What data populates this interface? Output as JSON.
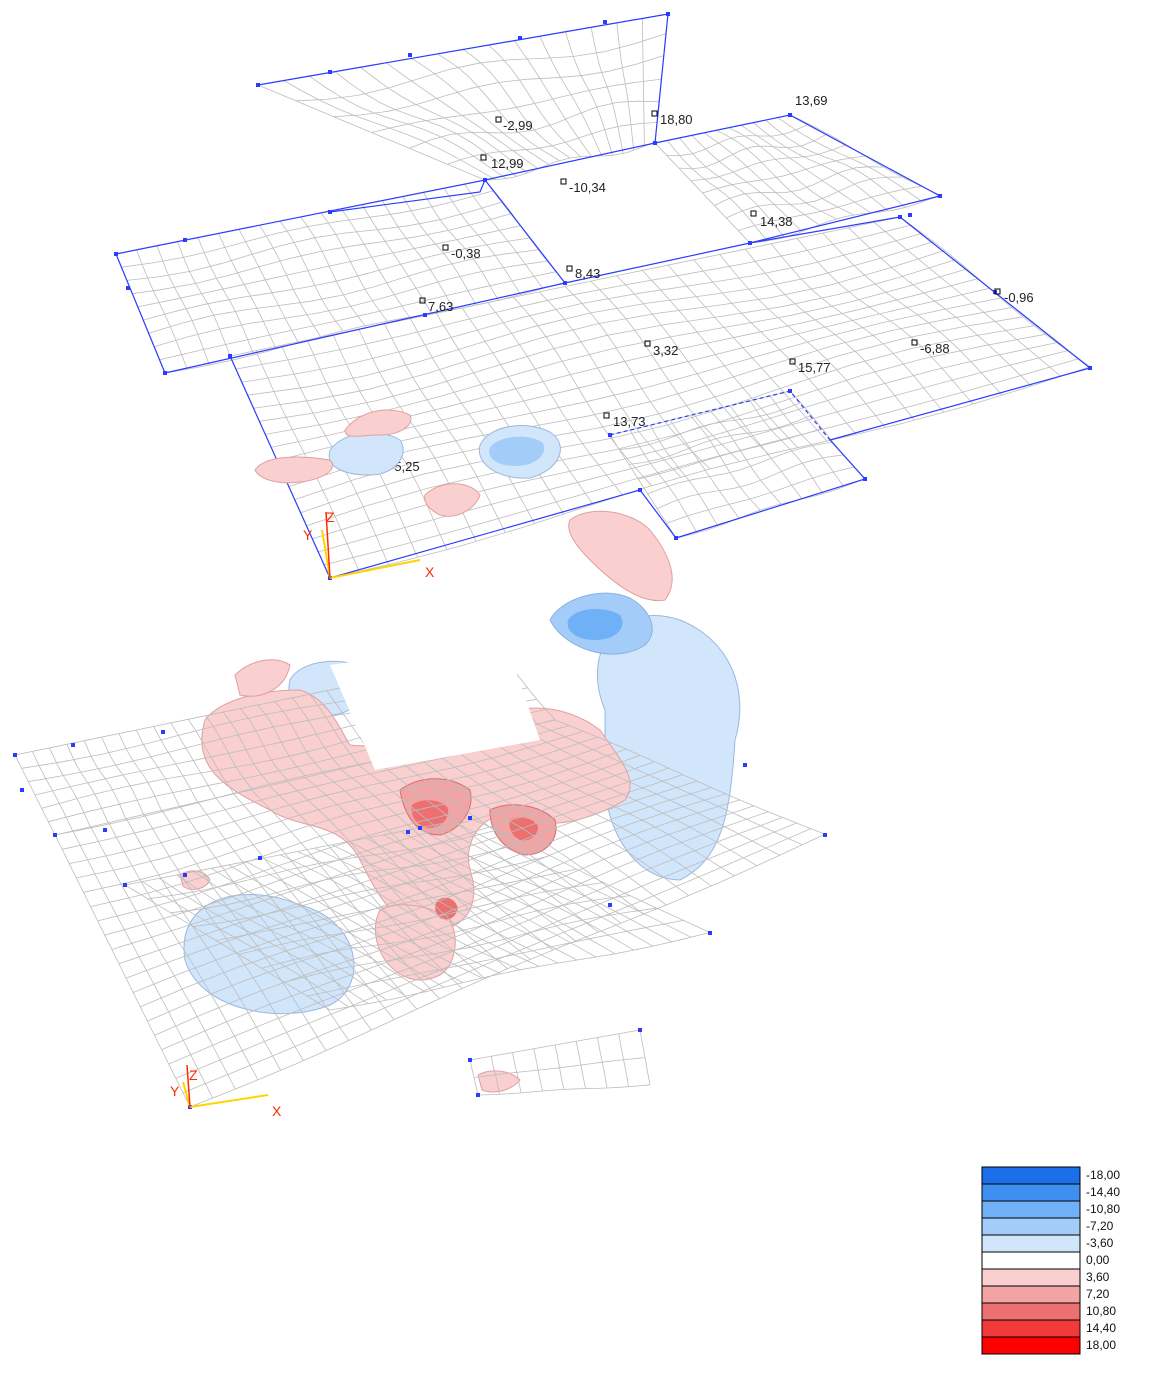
{
  "top_view": {
    "value_labels": [
      {
        "id": "m1",
        "text": "-2,99"
      },
      {
        "id": "m2",
        "text": "18,80"
      },
      {
        "id": "m3",
        "text": "13,69"
      },
      {
        "id": "m4",
        "text": "12,99"
      },
      {
        "id": "m5",
        "text": "-10,34"
      },
      {
        "id": "m6",
        "text": "14,38"
      },
      {
        "id": "m7",
        "text": "-0,38"
      },
      {
        "id": "m8",
        "text": "8,43"
      },
      {
        "id": "m9",
        "text": "7,63"
      },
      {
        "id": "m10",
        "text": "-0,96"
      },
      {
        "id": "m11",
        "text": "3,32"
      },
      {
        "id": "m12",
        "text": "15,77"
      },
      {
        "id": "m13",
        "text": "-6,88"
      },
      {
        "id": "m14",
        "text": "13,73"
      },
      {
        "id": "m15",
        "text": "-5,25"
      }
    ],
    "axes": {
      "z": "Z",
      "y": "Y",
      "x": "X"
    }
  },
  "bottom_view": {
    "axes": {
      "z": "Z",
      "y": "Y",
      "x": "X"
    }
  },
  "legend": {
    "entries": [
      {
        "label": "-18,00",
        "color": "#1a6fe8"
      },
      {
        "label": "-14,40",
        "color": "#3f8ff0"
      },
      {
        "label": "-10,80",
        "color": "#6fb0f6"
      },
      {
        "label": "-7,20",
        "color": "#a3cdf8"
      },
      {
        "label": "-3,60",
        "color": "#d2e6fb"
      },
      {
        "label": "0,00",
        "color": "#ffffff"
      },
      {
        "label": "3,60",
        "color": "#f9cfcf"
      },
      {
        "label": "7,20",
        "color": "#f2a3a3"
      },
      {
        "label": "10,80",
        "color": "#ec7070"
      },
      {
        "label": "14,40",
        "color": "#f23a3a"
      },
      {
        "label": "18,00",
        "color": "#ff0000"
      }
    ]
  },
  "colors": {
    "mesh": "#bdbdbd",
    "edge": "#2a3cff",
    "axis_x": "#ffd400",
    "axis_label": "#ff2a00"
  }
}
